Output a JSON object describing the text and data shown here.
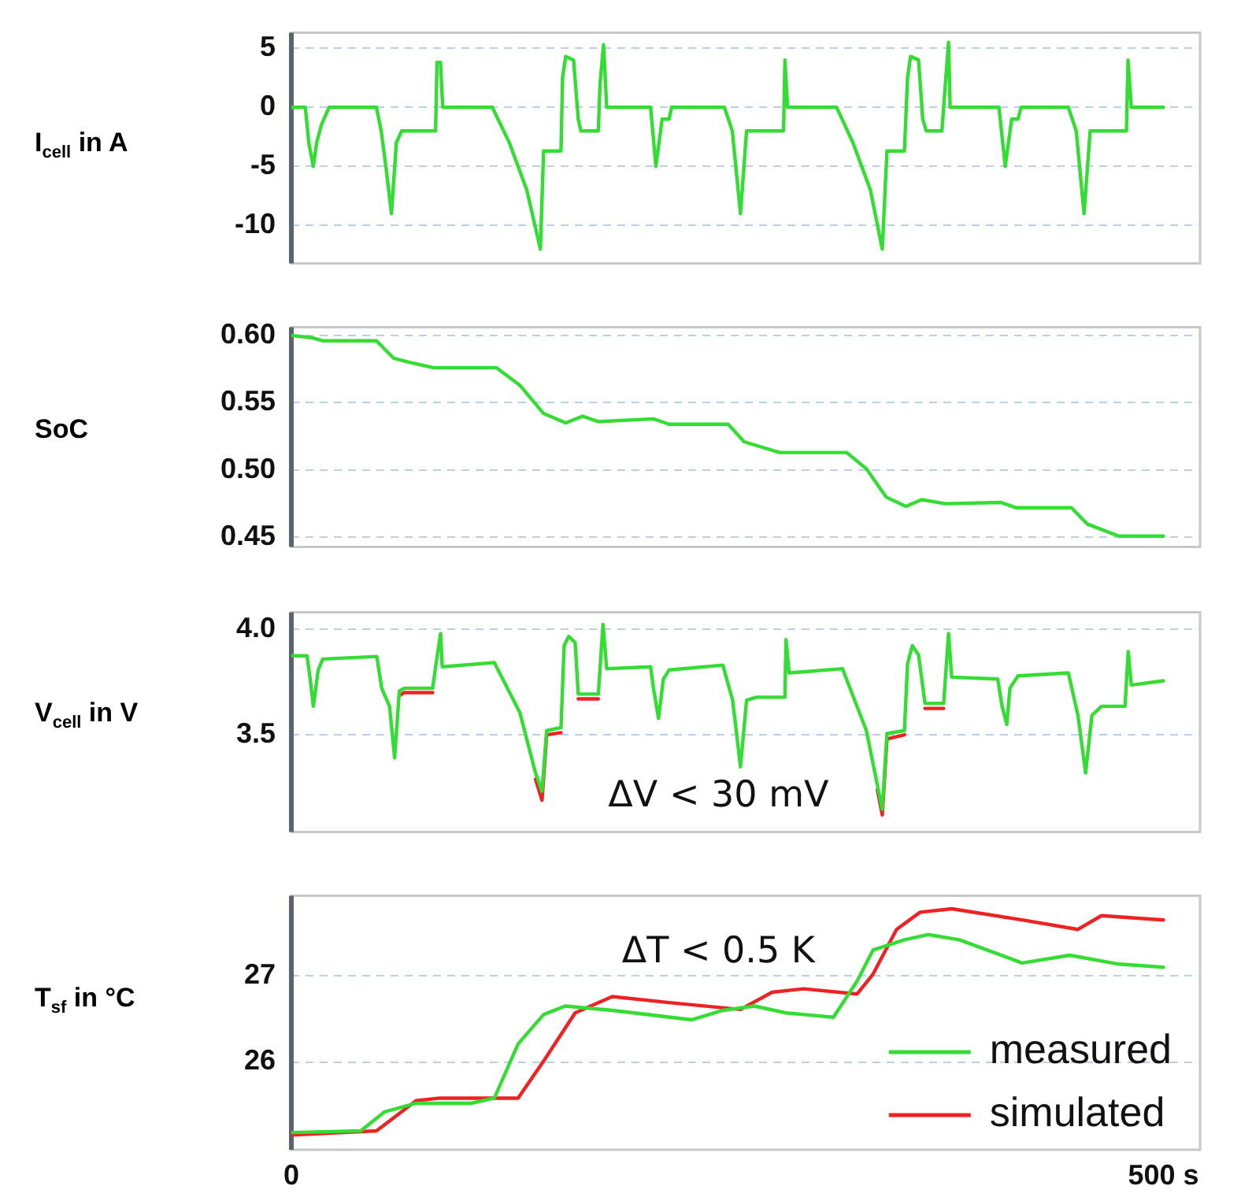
{
  "chart_data": [
    {
      "type": "line",
      "ylabel": "I$_{cell}$ in A",
      "xlim": [
        0,
        521
      ],
      "ylim": [
        -13.2,
        6.3
      ],
      "yticks": [
        5,
        0,
        -5,
        -10
      ],
      "grid": "y",
      "tick_labels": "y",
      "marker": "none",
      "line_style": "solid",
      "series": [
        {
          "color": "#33dd33",
          "x": [
            0,
            8,
            10,
            12.6,
            14.5,
            17.2,
            21.7,
            48.8,
            51.5,
            54.2,
            57.4,
            60.2,
            63.3,
            82.7,
            83.5,
            85.5,
            86.8,
            115.2,
            125,
            135,
            142.8,
            144.6,
            154.6,
            155.5,
            157.3,
            161.8,
            164.5,
            166,
            176,
            177,
            179,
            180.8,
            206,
            209,
            212.6,
            216.6,
            218,
            248.3,
            252.8,
            257.5,
            261,
            282.2,
            283,
            284.5,
            312.6,
            322,
            332,
            338.8,
            341.5,
            351.5,
            353.3,
            355,
            359.6,
            362,
            364,
            373,
            375,
            376.8,
            377.7,
            405.7,
            409.3,
            413,
            416.6,
            418.4,
            445.5,
            450,
            454.5,
            458,
            478.8,
            479.7,
            481.6,
            500
          ],
          "values": [
            0,
            0,
            -3,
            -5,
            -3,
            -1.5,
            0,
            0,
            -2,
            -5,
            -9,
            -3,
            -2,
            -2,
            3.8,
            3.8,
            0,
            0,
            -3,
            -7,
            -12,
            -3.7,
            -3.7,
            2.5,
            4.3,
            4,
            -1,
            -2,
            -2,
            2,
            5.3,
            0,
            0,
            -5,
            -1,
            -1,
            0,
            0,
            -2,
            -9,
            -2,
            -2,
            4,
            0,
            0,
            -3,
            -7,
            -12,
            -3.7,
            -3.7,
            2.5,
            4.3,
            4,
            -1,
            -2,
            -2,
            2,
            5.5,
            0,
            0,
            -5,
            -1,
            -1,
            0,
            0,
            -2,
            -9,
            -2,
            -2,
            4,
            0,
            0
          ]
        }
      ]
    },
    {
      "type": "line",
      "ylabel": "SoC",
      "xlim": [
        0,
        521
      ],
      "ylim": [
        0.443,
        0.606
      ],
      "yticks": [
        {
          "value": 0.6,
          "label": "0.60"
        },
        0.55,
        {
          "value": 0.5,
          "label": "0.50"
        },
        0.45
      ],
      "grid": "y",
      "tick_labels": "y",
      "marker": "none",
      "line_style": "solid",
      "series": [
        {
          "color": "#33dd33",
          "x": [
            0,
            12.6,
            18,
            48.8,
            58.7,
            67.8,
            81.4,
            117.6,
            131,
            144.6,
            157.3,
            167,
            176,
            207.6,
            216.6,
            250.5,
            259.6,
            280,
            318.4,
            329.7,
            341,
            352.3,
            361.4,
            375,
            406.6,
            415.7,
            447.3,
            456.3,
            474.4,
            500
          ],
          "values": [
            0.6,
            0.598,
            0.596,
            0.596,
            0.583,
            0.58,
            0.576,
            0.576,
            0.563,
            0.542,
            0.535,
            0.54,
            0.536,
            0.538,
            0.534,
            0.534,
            0.521,
            0.513,
            0.513,
            0.501,
            0.48,
            0.473,
            0.478,
            0.475,
            0.476,
            0.472,
            0.472,
            0.46,
            0.451,
            0.451
          ]
        }
      ]
    },
    {
      "type": "line",
      "ylabel": "V$_{cell}$ in V",
      "xlim": [
        0,
        521
      ],
      "ylim": [
        3.04,
        4.08
      ],
      "yticks": [
        {
          "value": 4,
          "label": "4.0"
        },
        3.5
      ],
      "grid": "y",
      "tick_labels": "y",
      "marker": "none",
      "line_style": "solid",
      "annotations": [
        "ΔV < 30 mV"
      ],
      "series": [
        {
          "color": "#ee2222",
          "x": [
            61.9,
            64.7,
            81
          ],
          "values": [
            3.685,
            3.7,
            3.7
          ]
        },
        {
          "color": "#ee2222",
          "x": [
            140,
            143.7,
            146.4,
            154.6
          ],
          "values": [
            3.29,
            3.19,
            3.5,
            3.51
          ]
        },
        {
          "color": "#ee2222",
          "x": [
            164.5,
            176
          ],
          "values": [
            3.67,
            3.67
          ]
        },
        {
          "color": "#ee2222",
          "x": [
            336,
            338.8,
            341.5,
            351.5
          ],
          "values": [
            3.24,
            3.12,
            3.48,
            3.5
          ]
        },
        {
          "color": "#ee2222",
          "x": [
            363.3,
            374
          ],
          "values": [
            3.625,
            3.625
          ]
        },
        {
          "color": "#33dd33",
          "x": [
            0,
            9,
            10.8,
            12.6,
            15.4,
            18,
            49,
            51.8,
            56.3,
            59.2,
            61.9,
            64.7,
            81,
            82.7,
            85.6,
            86.5,
            116.4,
            131,
            140,
            143.7,
            146.4,
            154.6,
            156.4,
            159,
            162.7,
            164.5,
            176,
            178.7,
            180.8,
            206,
            207.6,
            210.5,
            213.3,
            216.6,
            247.4,
            253,
            257.5,
            261,
            266.6,
            283,
            283.6,
            285.4,
            316,
            329.7,
            336,
            338.8,
            341.5,
            351.5,
            353.3,
            356,
            359.6,
            363.3,
            374,
            376.8,
            378.6,
            405,
            407.5,
            410.2,
            412,
            416.6,
            445.5,
            451,
            455.4,
            459,
            464.5,
            478,
            479.8,
            481.6,
            500
          ],
          "values": [
            3.874,
            3.874,
            3.764,
            3.635,
            3.807,
            3.859,
            3.871,
            3.721,
            3.635,
            3.391,
            3.707,
            3.721,
            3.721,
            3.822,
            3.98,
            3.822,
            3.842,
            3.606,
            3.319,
            3.233,
            3.52,
            3.534,
            3.922,
            3.966,
            3.937,
            3.693,
            3.693,
            4.023,
            3.813,
            3.822,
            3.721,
            3.578,
            3.764,
            3.807,
            3.83,
            3.664,
            3.348,
            3.664,
            3.678,
            3.678,
            3.951,
            3.793,
            3.813,
            3.52,
            3.261,
            3.147,
            3.506,
            3.52,
            3.836,
            3.922,
            3.879,
            3.649,
            3.649,
            3.98,
            3.773,
            3.764,
            3.635,
            3.549,
            3.721,
            3.779,
            3.793,
            3.592,
            3.319,
            3.592,
            3.635,
            3.635,
            3.894,
            3.736,
            3.756
          ]
        }
      ]
    },
    {
      "type": "line",
      "ylabel": "T$_{sf}$ in °C",
      "xlim": [
        0,
        521
      ],
      "xticks": [
        {
          "value": 0,
          "label": "0"
        },
        {
          "value": 500,
          "label": "500 s"
        }
      ],
      "ylim": [
        24.98,
        27.93
      ],
      "yticks": [
        27,
        26
      ],
      "grid": "y",
      "legend": "bottom right",
      "marker": "none",
      "line_style": "solid",
      "annotations": [
        "ΔT < 0.5 K"
      ],
      "series": [
        {
          "name": "simulated",
          "color": "#ee2222",
          "x": [
            0,
            48.8,
            57.9,
            71.5,
            85,
            130,
            144.6,
            162.7,
            184,
            216.6,
            257.5,
            275.6,
            293.7,
            324.4,
            333.5,
            347,
            360.5,
            378.6,
            419,
            451,
            464.5,
            500
          ],
          "values": [
            25.15,
            25.2,
            25.34,
            25.55,
            25.58,
            25.58,
            26.01,
            26.57,
            26.76,
            26.69,
            26.61,
            26.81,
            26.85,
            26.79,
            27.02,
            27.54,
            27.74,
            27.78,
            27.65,
            27.54,
            27.7,
            27.65
          ]
        },
        {
          "name": "measured",
          "color": "#33dd33",
          "x": [
            0,
            39.8,
            53.4,
            71.5,
            103,
            116.4,
            130,
            144.6,
            157,
            184,
            229.7,
            247.4,
            265.5,
            283.6,
            310.8,
            324.4,
            333.5,
            351.5,
            365,
            383,
            419,
            446.3,
            473.4,
            500
          ],
          "values": [
            25.18,
            25.2,
            25.42,
            25.52,
            25.52,
            25.58,
            26.21,
            26.55,
            26.65,
            26.6,
            26.49,
            26.6,
            26.65,
            26.57,
            26.52,
            26.94,
            27.3,
            27.42,
            27.48,
            27.42,
            27.15,
            27.24,
            27.14,
            27.1
          ]
        }
      ]
    }
  ]
}
